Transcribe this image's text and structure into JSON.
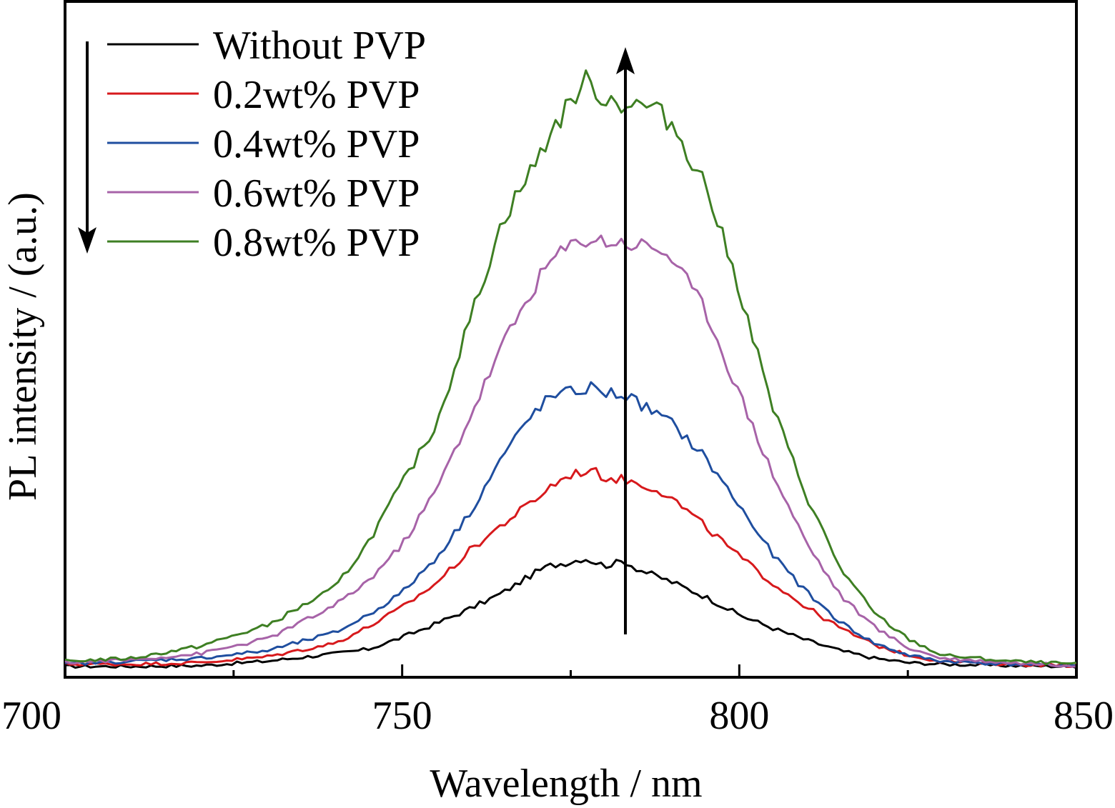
{
  "chart_data": {
    "type": "line",
    "title": "",
    "xlabel": "Wavelength / nm",
    "ylabel": "PL intensity / (a.u.)",
    "xlim": [
      700,
      850
    ],
    "ylim": [
      0,
      1
    ],
    "x_ticks": [
      700,
      750,
      800,
      850
    ],
    "x_tick_labels": [
      "700",
      "750",
      "800",
      "850"
    ],
    "y_tick_labels_shown": false,
    "grid": false,
    "legend_position": "top-left",
    "annotations": [
      {
        "type": "arrow",
        "direction": "down",
        "description": "arrow beside legend pointing from first to last entry"
      },
      {
        "type": "arrow",
        "direction": "up",
        "at_x": 783,
        "description": "vertical arrow indicating intensity increase"
      }
    ],
    "series": [
      {
        "name": "Without PVP",
        "color": "#000000",
        "x": [
          700,
          710,
          720,
          730,
          740,
          745,
          750,
          755,
          760,
          765,
          770,
          772,
          775,
          777,
          780,
          783,
          785,
          790,
          795,
          800,
          805,
          810,
          815,
          820,
          825,
          830,
          840,
          850
        ],
        "y": [
          0.005,
          0.005,
          0.006,
          0.012,
          0.022,
          0.028,
          0.044,
          0.062,
          0.082,
          0.104,
          0.132,
          0.14,
          0.145,
          0.15,
          0.14,
          0.146,
          0.135,
          0.118,
          0.098,
          0.074,
          0.056,
          0.04,
          0.026,
          0.016,
          0.01,
          0.008,
          0.006,
          0.005
        ]
      },
      {
        "name": "0.2wt% PVP",
        "color": "#d7191c",
        "x": [
          700,
          710,
          720,
          730,
          740,
          745,
          750,
          755,
          760,
          765,
          770,
          772,
          775,
          778,
          780,
          783,
          785,
          788,
          790,
          795,
          800,
          805,
          810,
          815,
          820,
          825,
          830,
          840,
          850
        ],
        "y": [
          0.008,
          0.008,
          0.01,
          0.018,
          0.036,
          0.058,
          0.084,
          0.116,
          0.16,
          0.196,
          0.23,
          0.246,
          0.262,
          0.268,
          0.258,
          0.255,
          0.25,
          0.242,
          0.23,
          0.192,
          0.152,
          0.116,
          0.084,
          0.056,
          0.034,
          0.02,
          0.012,
          0.008,
          0.006
        ]
      },
      {
        "name": "0.4wt% PVP",
        "color": "#1f4e9f",
        "x": [
          700,
          710,
          720,
          730,
          740,
          745,
          750,
          755,
          760,
          765,
          770,
          772,
          775,
          778,
          780,
          783,
          785,
          790,
          795,
          800,
          805,
          810,
          815,
          820,
          825,
          830,
          840,
          850
        ],
        "y": [
          0.008,
          0.012,
          0.016,
          0.026,
          0.05,
          0.074,
          0.104,
          0.15,
          0.21,
          0.288,
          0.35,
          0.365,
          0.372,
          0.378,
          0.372,
          0.368,
          0.358,
          0.33,
          0.284,
          0.22,
          0.154,
          0.104,
          0.064,
          0.036,
          0.02,
          0.012,
          0.008,
          0.006
        ]
      },
      {
        "name": "0.6wt% PVP",
        "color": "#a763a8",
        "x": [
          700,
          710,
          720,
          730,
          740,
          745,
          750,
          755,
          760,
          765,
          770,
          772,
          775,
          777,
          780,
          783,
          785,
          788,
          790,
          795,
          800,
          805,
          810,
          815,
          820,
          825,
          830,
          840,
          850
        ],
        "y": [
          0.01,
          0.014,
          0.022,
          0.042,
          0.086,
          0.12,
          0.168,
          0.24,
          0.338,
          0.438,
          0.52,
          0.548,
          0.568,
          0.578,
          0.575,
          0.572,
          0.57,
          0.565,
          0.552,
          0.482,
          0.37,
          0.262,
          0.17,
          0.1,
          0.058,
          0.03,
          0.016,
          0.01,
          0.006
        ]
      },
      {
        "name": "0.8wt% PVP",
        "color": "#3e7f23",
        "x": [
          700,
          710,
          720,
          730,
          740,
          745,
          750,
          755,
          760,
          765,
          770,
          772,
          775,
          777,
          780,
          783,
          785,
          787,
          790,
          795,
          800,
          805,
          810,
          815,
          820,
          825,
          830,
          840,
          850
        ],
        "y": [
          0.012,
          0.016,
          0.032,
          0.06,
          0.11,
          0.172,
          0.25,
          0.328,
          0.468,
          0.604,
          0.682,
          0.72,
          0.76,
          0.79,
          0.766,
          0.758,
          0.756,
          0.754,
          0.732,
          0.65,
          0.51,
          0.35,
          0.232,
          0.136,
          0.076,
          0.042,
          0.02,
          0.012,
          0.008
        ]
      }
    ]
  }
}
